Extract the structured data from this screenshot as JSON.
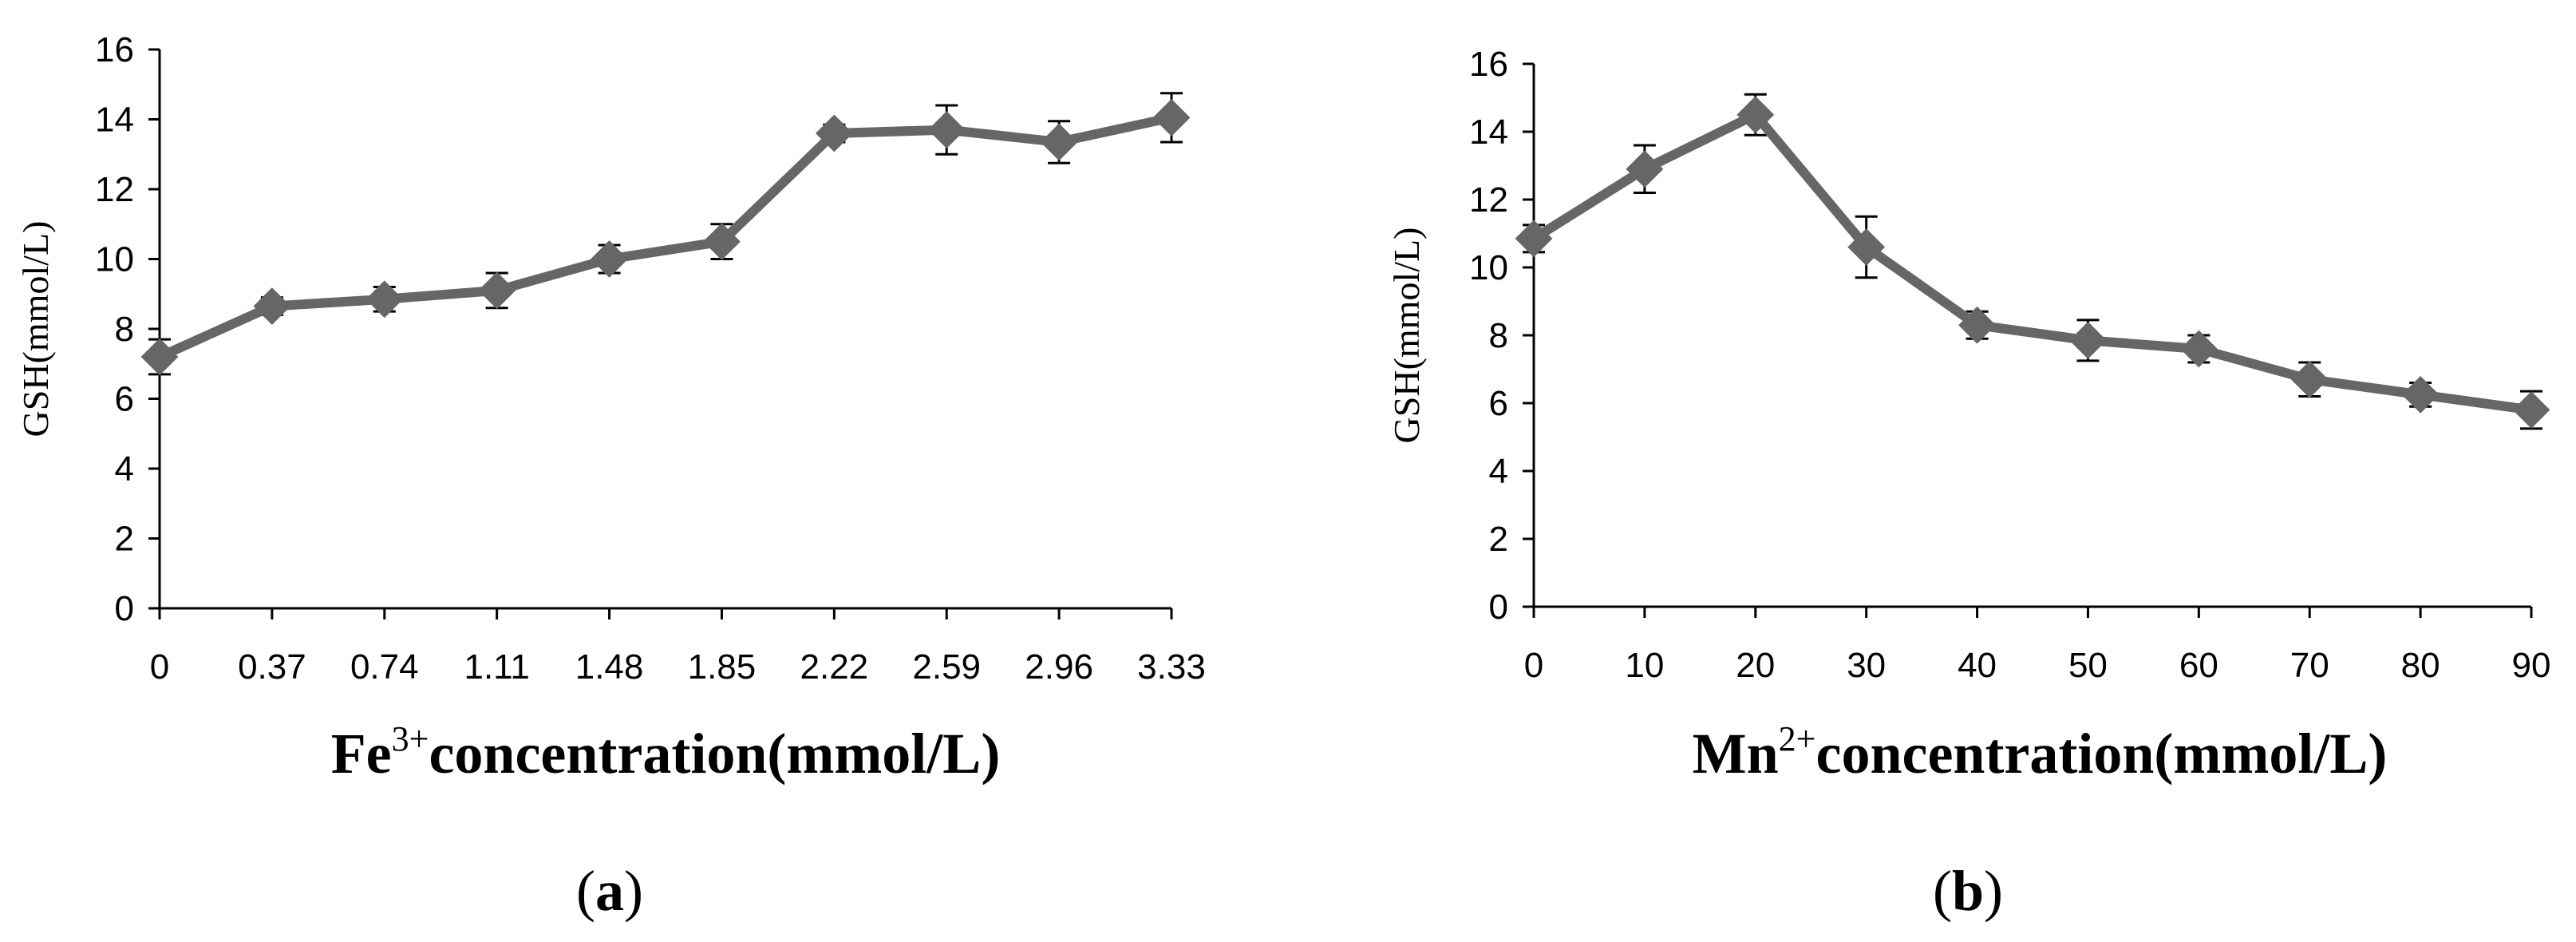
{
  "colors": {
    "series": "#666666",
    "axis": "#000000"
  },
  "chart_data": [
    {
      "id": "a",
      "type": "line",
      "categories": [
        "0",
        "0.37",
        "0.74",
        "1.11",
        "1.48",
        "1.85",
        "2.22",
        "2.59",
        "2.96",
        "3.33"
      ],
      "series": [
        {
          "name": "GSH",
          "values": [
            7.2,
            8.65,
            8.85,
            9.1,
            10.0,
            10.5,
            13.6,
            13.7,
            13.35,
            14.05
          ],
          "errors": [
            0.5,
            0.25,
            0.35,
            0.5,
            0.4,
            0.5,
            0.25,
            0.7,
            0.6,
            0.7
          ]
        }
      ],
      "title": "",
      "ylabel": "GSH(mmol/L)",
      "xlabel_main": "Fe",
      "xlabel_sup": "3+",
      "xlabel_rest": "concentration(mmol/L)",
      "ylim": [
        0,
        16
      ],
      "yticks": [
        "0",
        "2",
        "4",
        "6",
        "8",
        "10",
        "12",
        "14",
        "16"
      ],
      "panel_label": {
        "open": "(",
        "letter": "a",
        "close": ")"
      }
    },
    {
      "id": "b",
      "type": "line",
      "categories": [
        "0",
        "10",
        "20",
        "30",
        "40",
        "50",
        "60",
        "70",
        "80",
        "90"
      ],
      "series": [
        {
          "name": "GSH",
          "values": [
            10.85,
            12.9,
            14.5,
            10.6,
            8.3,
            7.85,
            7.6,
            6.7,
            6.25,
            5.8
          ],
          "errors": [
            0.4,
            0.7,
            0.6,
            0.9,
            0.4,
            0.6,
            0.4,
            0.5,
            0.35,
            0.55
          ]
        }
      ],
      "title": "",
      "ylabel": "GSH(mmol/L)",
      "xlabel_main": "Mn",
      "xlabel_sup": "2+",
      "xlabel_rest": "concentration(mmol/L)",
      "ylim": [
        0,
        16
      ],
      "yticks": [
        "0",
        "2",
        "4",
        "6",
        "8",
        "10",
        "12",
        "14",
        "16"
      ],
      "panel_label": {
        "open": "(",
        "letter": "b",
        "close": ")"
      }
    }
  ]
}
